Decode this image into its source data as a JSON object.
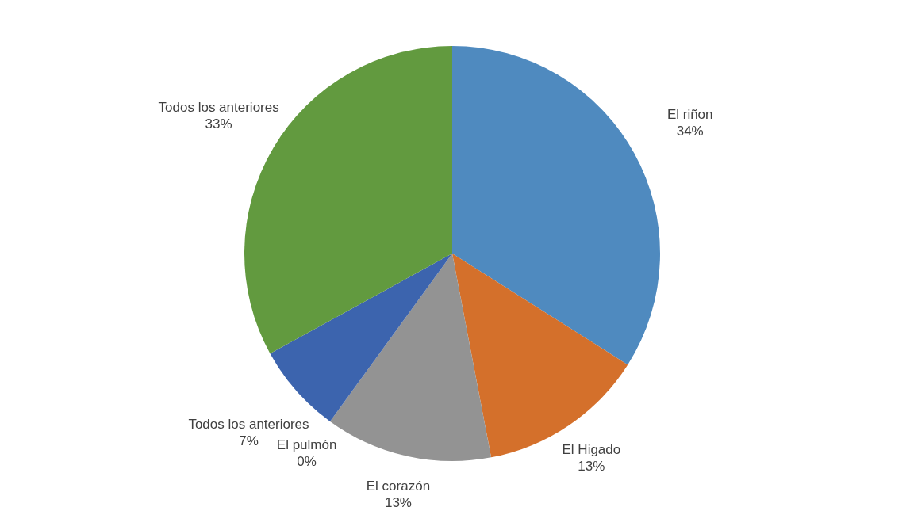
{
  "chart_data": {
    "type": "pie",
    "categories": [
      "El riñon",
      "El Higado",
      "El corazón",
      "El pulmón",
      "Todos los anteriores",
      "Todos los anteriores"
    ],
    "values": [
      34,
      13,
      13,
      0,
      7,
      33
    ],
    "value_labels": [
      "34%",
      "13%",
      "13%",
      "0%",
      "7%",
      "33%"
    ],
    "colors": [
      "#4f8abf",
      "#d4702b",
      "#939393",
      "#f2b800",
      "#3c64ae",
      "#629a3f"
    ],
    "legend": false
  }
}
